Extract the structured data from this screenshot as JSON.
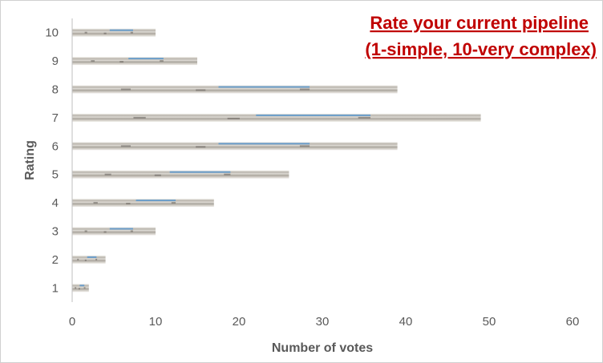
{
  "chart_data": {
    "type": "bar",
    "orientation": "horizontal",
    "title_lines": [
      "Rate your current pipeline",
      "(1-simple, 10-very complex)"
    ],
    "xlabel": "Number of votes",
    "ylabel": "Rating",
    "categories": [
      "1",
      "2",
      "3",
      "4",
      "5",
      "6",
      "7",
      "8",
      "9",
      "10"
    ],
    "values": [
      2,
      4,
      10,
      17,
      26,
      39,
      49,
      39,
      15,
      10
    ],
    "xlim": [
      0,
      60
    ],
    "xticks": [
      "0",
      "10",
      "20",
      "30",
      "40",
      "50",
      "60"
    ],
    "grid": false,
    "legend": "none",
    "title_position": "top-right",
    "colors": {
      "title": "#c00000",
      "axis_text": "#595959",
      "bar_base": "#c4c0b8",
      "bar_sky": "#4e93d0",
      "bar_dark": "#6a6560",
      "axis_line": "#bfbfbf"
    }
  }
}
